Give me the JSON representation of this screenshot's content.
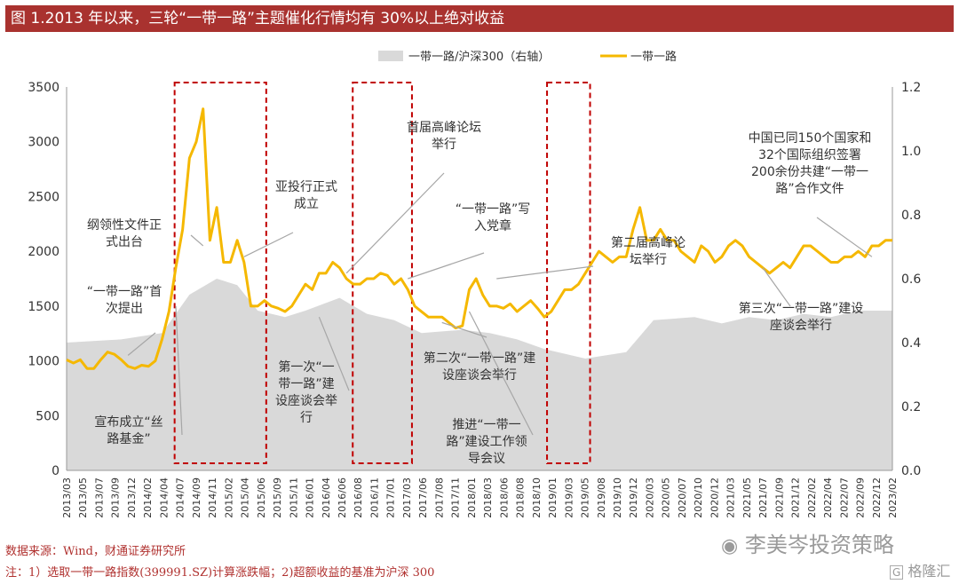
{
  "figure": {
    "title": "图 1.2013 年以来，三轮“一带一路”主题催化行情均有 30%以上绝对收益",
    "source": "数据来源：Wind，财通证券研究所",
    "note": "注：1）选取一带一路指数(399991.SZ)计算涨跌幅；2)超额收益的基准为沪深 300"
  },
  "watermark": {
    "wechat": "李美岑投资策略",
    "gelonghui": "格隆汇"
  },
  "colors": {
    "title_bg": "#a9322f",
    "line": "#f5b800",
    "area": "#d9d9d9",
    "box": "#c00000",
    "annotation": "#a6a6a6"
  },
  "chart_data": {
    "type": "line",
    "legend": [
      "一带一路/沪深300（右轴）",
      "一带一路"
    ],
    "legend_position": "top-center",
    "grid": false,
    "x_tick_labels": [
      "2013/03",
      "2013/05",
      "2013/07",
      "2013/09",
      "2013/12",
      "2014/02",
      "2014/04",
      "2014/07",
      "2014/09",
      "2014/11",
      "2015/02",
      "2015/04",
      "2015/06",
      "2015/09",
      "2015/11",
      "2016/01",
      "2016/04",
      "2016/06",
      "2016/08",
      "2016/11",
      "2017/01",
      "2017/03",
      "2017/06",
      "2017/08",
      "2017/11",
      "2018/01",
      "2018/03",
      "2018/06",
      "2018/08",
      "2018/10",
      "2019/01",
      "2019/03",
      "2019/05",
      "2019/08",
      "2019/10",
      "2019/12",
      "2020/03",
      "2020/05",
      "2020/07",
      "2020/10",
      "2020/12",
      "2021/03",
      "2021/05",
      "2021/07",
      "2021/09",
      "2021/12",
      "2022/02",
      "2022/04",
      "2022/07",
      "2022/09",
      "2022/12",
      "2023/02"
    ],
    "y_left": {
      "min": 0,
      "max": 3500,
      "ticks": [
        "0",
        "500",
        "1000",
        "1500",
        "2000",
        "2500",
        "3000",
        "3500"
      ]
    },
    "y_right": {
      "min": 0,
      "max": 1.2,
      "ticks": [
        "0.0",
        "0.2",
        "0.4",
        "0.6",
        "0.8",
        "1.0",
        "1.2"
      ]
    },
    "series": [
      {
        "name": "一带一路",
        "axis": "left",
        "x": [
          0,
          1,
          2,
          3,
          4,
          5,
          6,
          7,
          8,
          9,
          10,
          11,
          12,
          13,
          14,
          15,
          16,
          17,
          18,
          19,
          20,
          21,
          22,
          23,
          24,
          25,
          26,
          27,
          28,
          29,
          30,
          31,
          32,
          33,
          34,
          35,
          36,
          37,
          38,
          39,
          40,
          41,
          42,
          43,
          44,
          45,
          46,
          47,
          48,
          49,
          50,
          51,
          52,
          53,
          54,
          55,
          56,
          57,
          58,
          59,
          60,
          61,
          62,
          63,
          64,
          65,
          66,
          67,
          68,
          69,
          70,
          71,
          72,
          73,
          74,
          75,
          76,
          77,
          78,
          79,
          80,
          81,
          82,
          83,
          84,
          85,
          86,
          87,
          88,
          89,
          90,
          91,
          92,
          93,
          94,
          95,
          96,
          97,
          98,
          99,
          100,
          101,
          102,
          103,
          104,
          105,
          106,
          107,
          108,
          109,
          110,
          111,
          112,
          113,
          114,
          115,
          116,
          117,
          118,
          119,
          120,
          121
        ],
        "values": [
          1010,
          980,
          1010,
          930,
          930,
          1010,
          1080,
          1060,
          1010,
          950,
          930,
          960,
          950,
          1000,
          1200,
          1450,
          1850,
          2200,
          2850,
          3000,
          3300,
          2100,
          2400,
          1900,
          1900,
          2100,
          1900,
          1500,
          1500,
          1550,
          1500,
          1480,
          1450,
          1500,
          1600,
          1700,
          1650,
          1800,
          1800,
          1900,
          1850,
          1750,
          1700,
          1700,
          1750,
          1750,
          1800,
          1780,
          1700,
          1750,
          1650,
          1500,
          1450,
          1400,
          1400,
          1400,
          1350,
          1300,
          1320,
          1650,
          1750,
          1600,
          1500,
          1500,
          1480,
          1520,
          1450,
          1500,
          1550,
          1480,
          1400,
          1450,
          1550,
          1650,
          1650,
          1700,
          1800,
          1900,
          2000,
          1950,
          1900,
          1950,
          1950,
          2200,
          2400,
          2100,
          2100,
          2200,
          2100,
          2100,
          2000,
          1950,
          1900,
          2050,
          2000,
          1900,
          1950,
          2050,
          2100,
          2050,
          1950,
          1900,
          1850,
          1800,
          1850,
          1900,
          1850,
          1950,
          2050,
          2050,
          2000,
          1950,
          1900,
          1900,
          1950,
          1950,
          2000,
          1950,
          2050,
          2050,
          2100,
          2100
        ]
      },
      {
        "name": "一带一路/沪深300（右轴）",
        "axis": "right",
        "x": [
          0,
          8,
          14,
          18,
          22,
          25,
          28,
          32,
          35,
          40,
          44,
          48,
          52,
          58,
          62,
          66,
          70,
          76,
          82,
          86,
          92,
          96,
          100,
          104,
          108,
          112,
          116,
          121
        ],
        "values": [
          0.4,
          0.41,
          0.43,
          0.55,
          0.6,
          0.58,
          0.5,
          0.48,
          0.5,
          0.54,
          0.49,
          0.47,
          0.43,
          0.44,
          0.43,
          0.41,
          0.38,
          0.35,
          0.37,
          0.47,
          0.48,
          0.46,
          0.48,
          0.47,
          0.49,
          0.48,
          0.5,
          0.5
        ]
      }
    ],
    "highlight_boxes": [
      {
        "from": "2014/07",
        "to": "2015/06"
      },
      {
        "from": "2016/08",
        "to": "2017/03"
      },
      {
        "from": "2019/01",
        "to": "2019/05"
      }
    ],
    "annotations": [
      {
        "label": "“一带一路”首\n次提出",
        "x": 9,
        "y": 1050
      },
      {
        "label": "纲领性文件正\n式出台",
        "x": 20,
        "y": 2050
      },
      {
        "label": "宣布成立“丝\n路基金”",
        "x": 16,
        "y": 1500
      },
      {
        "label": "亚投行正式\n成立",
        "x": 26,
        "y": 1950
      },
      {
        "label": "第一次“一\n带一路”建\n设座谈会举\n行",
        "x": 37,
        "y": 1400
      },
      {
        "label": "首届高峰论坛\n举行",
        "x": 41,
        "y": 1800
      },
      {
        "label": "“一带一路”写\n入党章",
        "x": 50,
        "y": 1750
      },
      {
        "label": "第二次“一带一路”建\n设座谈会举行",
        "x": 55,
        "y": 1350
      },
      {
        "label": "推进“一带一\n路”建设工作领\n导会议",
        "x": 59,
        "y": 1450
      },
      {
        "label": "第二届高峰论\n坛举行",
        "x": 63,
        "y": 1750
      },
      {
        "label": "中国已同150个国家和\n32个国际组织签署\n200余份共建“一带一\n路”合作文件",
        "x": 118,
        "y": 1950
      },
      {
        "label": "第三次“一带一路”建设\n座谈会举行",
        "x": 102,
        "y": 1850
      }
    ]
  }
}
